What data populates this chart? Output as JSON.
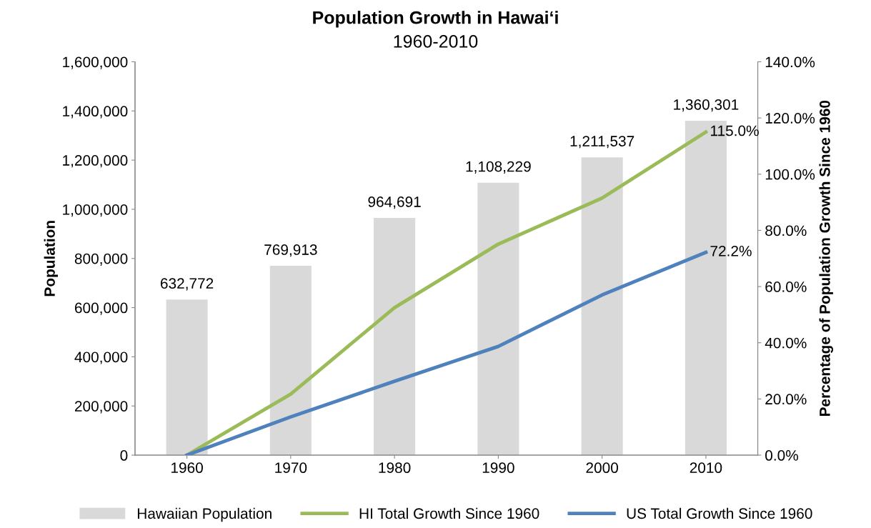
{
  "chart_data": {
    "type": "bar",
    "title": "Population Growth in Hawai‘i",
    "subtitle": "1960-2010",
    "ylabel": "Population",
    "y2label": "Percentage of Population Growth Since 1960",
    "categories": [
      "1960",
      "1970",
      "1980",
      "1990",
      "2000",
      "2010"
    ],
    "series": [
      {
        "name": "Hawaiian Population",
        "color": "#d9d9d9",
        "values": [
          632772,
          769913,
          964691,
          1108229,
          1211537,
          1360301
        ],
        "value_labels": [
          "632,772",
          "769,913",
          "964,691",
          "1,108,229",
          "1,211,537",
          "1,360,301"
        ]
      },
      {
        "name": "HI Total Growth Since 1960",
        "type": "line",
        "axis": "y2",
        "color": "#9bbb59",
        "values": [
          0,
          21.7,
          52.5,
          75.1,
          91.5,
          115.0
        ],
        "value_labels": [
          null,
          null,
          null,
          null,
          null,
          "115.0%"
        ]
      },
      {
        "name": "US Total Growth Since 1960",
        "type": "line",
        "axis": "y2",
        "color": "#4f81bd",
        "values": [
          0,
          13.6,
          26.3,
          38.7,
          57.0,
          72.2
        ],
        "value_labels": [
          null,
          null,
          null,
          null,
          null,
          "72.2%"
        ]
      }
    ],
    "ylim": [
      0,
      1600000
    ],
    "yticks": [
      {
        "value": 0,
        "label": "0"
      },
      {
        "value": 200000,
        "label": "200,000"
      },
      {
        "value": 400000,
        "label": "400,000"
      },
      {
        "value": 600000,
        "label": "600,000"
      },
      {
        "value": 800000,
        "label": "800,000"
      },
      {
        "value": 1000000,
        "label": "1,000,000"
      },
      {
        "value": 1200000,
        "label": "1,200,000"
      },
      {
        "value": 1400000,
        "label": "1,400,000"
      },
      {
        "value": 1600000,
        "label": "1,600,000"
      }
    ],
    "y2lim": [
      0,
      140
    ],
    "y2ticks": [
      {
        "value": 0,
        "label": "0.0%"
      },
      {
        "value": 20,
        "label": "20.0%"
      },
      {
        "value": 40,
        "label": "40.0%"
      },
      {
        "value": 60,
        "label": "60.0%"
      },
      {
        "value": 80,
        "label": "80.0%"
      },
      {
        "value": 100,
        "label": "100.0%"
      },
      {
        "value": 120,
        "label": "120.0%"
      },
      {
        "value": 140,
        "label": "140.0%"
      }
    ],
    "legend": "bottom",
    "grid": false,
    "marker": "none",
    "line_style": "solid"
  }
}
